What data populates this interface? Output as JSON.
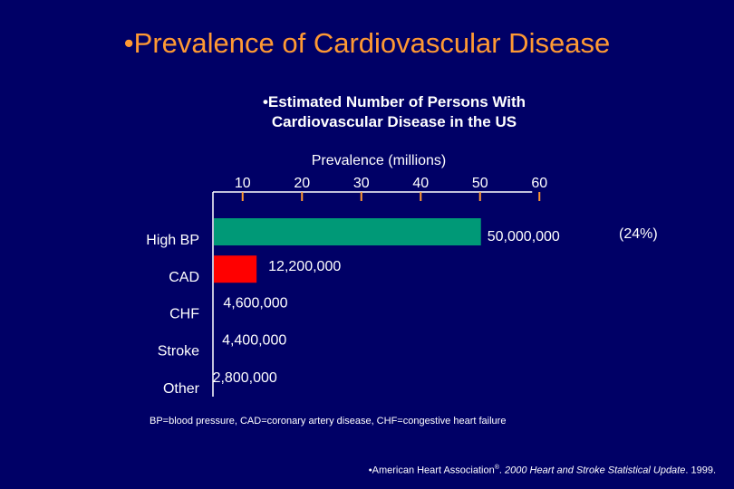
{
  "title": "•Prevalence of Cardiovascular Disease",
  "subtitle_line1": "•Estimated Number of Persons With",
  "subtitle_line2": "Cardiovascular Disease in the US",
  "footnote": "BP=blood pressure, CAD=coronary artery disease, CHF=congestive heart failure",
  "source_prefix": "•American Heart Association",
  "source_reg": "®",
  "source_sep": ". ",
  "source_title": "2000 Heart and Stroke Statistical Update",
  "source_suffix": ". 1999.",
  "chart_data": {
    "type": "bar",
    "orientation": "horizontal",
    "xlabel": "Prevalence (millions)",
    "xticks": [
      10,
      20,
      30,
      40,
      50,
      60
    ],
    "xtick_labels": [
      "10",
      "20",
      "30",
      "40",
      "50",
      "60"
    ],
    "xlim": [
      5,
      60
    ],
    "categories": [
      "High BP",
      "CAD",
      "CHF",
      "Stroke",
      "Other"
    ],
    "values": [
      50.0,
      12.2,
      4.6,
      4.4,
      2.8
    ],
    "data_labels": [
      "50,000,000",
      "12,200,000",
      "4,600,000",
      "4,400,000",
      "2,800,000"
    ],
    "colors": [
      "#009977",
      "#ff0000",
      "#ffaa33",
      "#330077",
      "#ff6600"
    ],
    "annotations": [
      {
        "category": "High BP",
        "text": "(24%)"
      }
    ],
    "grid": false,
    "legend": "none"
  }
}
